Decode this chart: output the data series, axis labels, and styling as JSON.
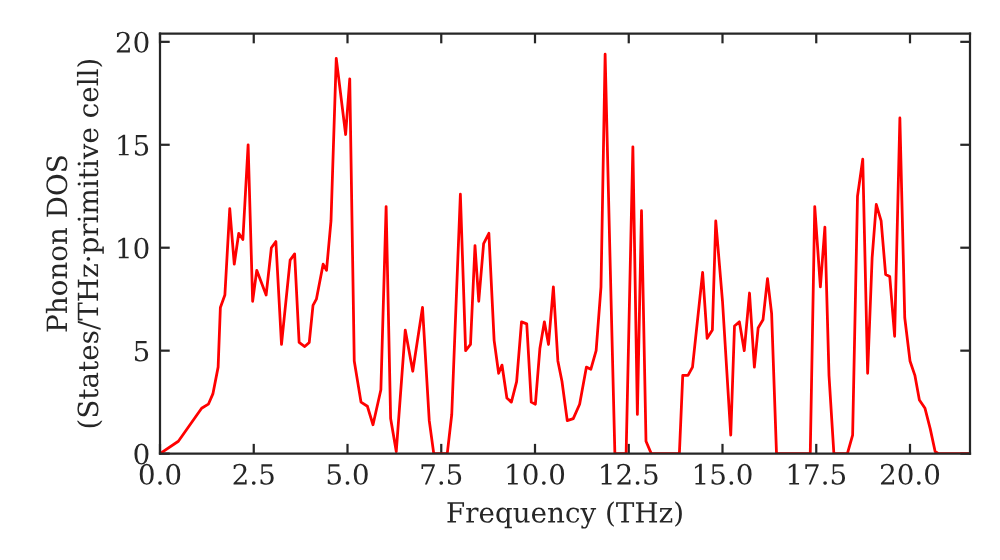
{
  "chart_data": {
    "type": "line",
    "xlabel": "Frequency (THz)",
    "ylabel": "Phonon DOS\n(States/THz·primitive cell)",
    "xlim": [
      0,
      21.6
    ],
    "ylim": [
      0,
      20.4
    ],
    "xticks": [
      {
        "value": 0,
        "label": "0.0"
      },
      {
        "value": 2.5,
        "label": "2.5"
      },
      {
        "value": 5,
        "label": "5.0"
      },
      {
        "value": 7.5,
        "label": "7.5"
      },
      {
        "value": 10,
        "label": "10.0"
      },
      {
        "value": 12.5,
        "label": "12.5"
      },
      {
        "value": 15,
        "label": "15.0"
      },
      {
        "value": 17.5,
        "label": "17.5"
      },
      {
        "value": 20,
        "label": "20.0"
      }
    ],
    "yticks": [
      0,
      5,
      10,
      15,
      20
    ],
    "grid": false,
    "marker": "none",
    "line_style": "solid",
    "series": [
      {
        "color": "#ff0000",
        "x": [
          0,
          0.49,
          1.11,
          1.29,
          1.41,
          1.55,
          1.61,
          1.73,
          1.86,
          1.98,
          2.1,
          2.21,
          2.35,
          2.47,
          2.58,
          2.83,
          2.97,
          3.09,
          3.24,
          3.47,
          3.59,
          3.71,
          3.86,
          3.98,
          4.08,
          4.17,
          4.35,
          4.44,
          4.56,
          4.7,
          4.95,
          5.06,
          5.18,
          5.36,
          5.53,
          5.68,
          5.89,
          6.03,
          6.15,
          6.3,
          6.54,
          6.74,
          7.0,
          7.18,
          7.3,
          7.66,
          7.78,
          8.01,
          8.15,
          8.28,
          8.4,
          8.5,
          8.63,
          8.77,
          8.91,
          9.03,
          9.12,
          9.25,
          9.37,
          9.51,
          9.64,
          9.78,
          9.9,
          10.01,
          10.13,
          10.25,
          10.36,
          10.49,
          10.61,
          10.72,
          10.86,
          11.02,
          11.19,
          11.37,
          11.49,
          11.63,
          11.76,
          11.87,
          11.99,
          12.13,
          12.43,
          12.61,
          12.73,
          12.84,
          12.96,
          13.1,
          13.85,
          13.94,
          14.08,
          14.2,
          14.47,
          14.59,
          14.73,
          14.82,
          15.0,
          15.22,
          15.32,
          15.45,
          15.58,
          15.72,
          15.85,
          15.95,
          16.08,
          16.2,
          16.31,
          16.44,
          17.34,
          17.46,
          17.61,
          17.73,
          17.84,
          17.97,
          18.33,
          18.47,
          18.6,
          18.74,
          18.87,
          18.99,
          19.1,
          19.23,
          19.35,
          19.46,
          19.59,
          19.73,
          19.86,
          20.0,
          20.13,
          20.25,
          20.4,
          20.54,
          20.67,
          20.76,
          21.6
        ],
        "values": [
          0,
          0.6,
          2.2,
          2.4,
          2.9,
          4.2,
          7.1,
          7.7,
          11.9,
          9.2,
          10.7,
          10.4,
          15.0,
          7.4,
          8.9,
          7.7,
          10.0,
          10.3,
          5.3,
          9.4,
          9.7,
          5.4,
          5.2,
          5.4,
          7.2,
          7.5,
          9.2,
          8.9,
          11.3,
          19.2,
          15.5,
          18.2,
          4.5,
          2.5,
          2.3,
          1.4,
          3.1,
          12.0,
          1.7,
          0.1,
          6.0,
          4.0,
          7.1,
          1.6,
          0,
          0,
          1.9,
          12.6,
          5.0,
          5.3,
          10.1,
          7.4,
          10.2,
          10.7,
          5.5,
          3.9,
          4.3,
          2.7,
          2.5,
          3.5,
          6.4,
          6.3,
          2.5,
          2.4,
          5.1,
          6.4,
          5.3,
          8.1,
          4.5,
          3.5,
          1.6,
          1.7,
          2.4,
          4.2,
          4.1,
          5.0,
          8.1,
          19.4,
          10.3,
          0,
          0,
          14.9,
          1.9,
          11.8,
          0.6,
          0,
          0,
          3.8,
          3.8,
          4.2,
          8.8,
          5.6,
          6.0,
          11.3,
          7.4,
          0.9,
          6.2,
          6.4,
          5.0,
          7.8,
          4.2,
          6.1,
          6.5,
          8.5,
          6.8,
          0,
          0,
          12.0,
          8.1,
          11.0,
          3.8,
          0,
          0,
          0.9,
          12.5,
          14.3,
          3.9,
          9.5,
          12.1,
          11.3,
          8.7,
          8.6,
          5.7,
          16.3,
          6.6,
          4.5,
          3.8,
          2.6,
          2.2,
          1.2,
          0.1,
          0,
          0
        ]
      }
    ]
  }
}
